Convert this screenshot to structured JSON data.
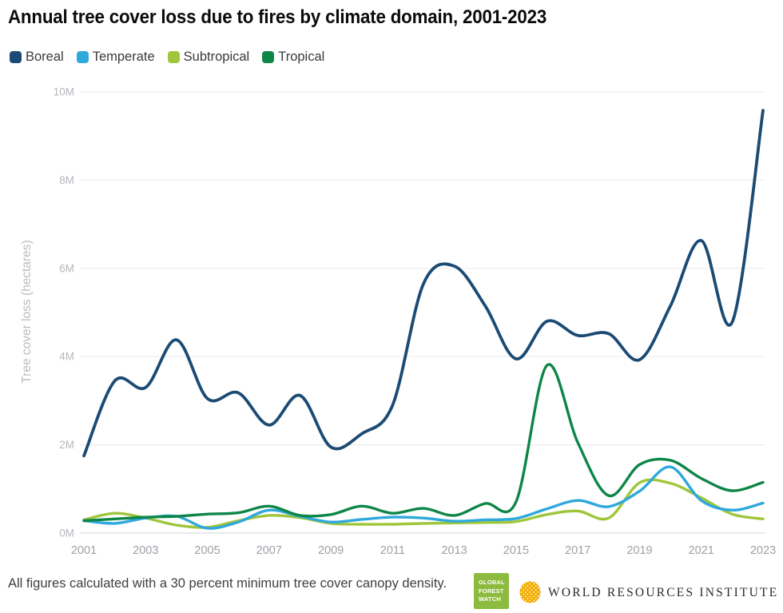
{
  "header": {
    "title": "Annual tree cover loss due to fires by climate domain, 2001-2023"
  },
  "chart_data": {
    "type": "line",
    "title": "Annual tree cover loss due to fires by climate domain, 2001-2023",
    "xlabel": "",
    "ylabel": "Tree cover loss (hectares)",
    "unit": "million hectares",
    "grid": true,
    "legend_position": "top",
    "ylim_mha": [
      0,
      10
    ],
    "x_years": [
      2001,
      2002,
      2003,
      2004,
      2005,
      2006,
      2007,
      2008,
      2009,
      2010,
      2011,
      2012,
      2013,
      2014,
      2015,
      2016,
      2017,
      2018,
      2019,
      2020,
      2021,
      2022,
      2023
    ],
    "xtick_labels": [
      "2001",
      "2003",
      "2005",
      "2007",
      "2009",
      "2011",
      "2013",
      "2015",
      "2017",
      "2019",
      "2021",
      "2023"
    ],
    "yticks": [
      {
        "value": 0,
        "label": "0M"
      },
      {
        "value": 2,
        "label": "2M"
      },
      {
        "value": 4,
        "label": "4M"
      },
      {
        "value": 6,
        "label": "6M"
      },
      {
        "value": 8,
        "label": "8M"
      },
      {
        "value": 10,
        "label": "10M"
      }
    ],
    "series": [
      {
        "name": "Boreal",
        "color": "#1B4B74",
        "values_mha": [
          1.75,
          3.45,
          3.3,
          4.38,
          3.05,
          3.18,
          2.45,
          3.12,
          1.95,
          2.25,
          2.9,
          5.65,
          6.05,
          5.15,
          3.95,
          4.8,
          4.48,
          4.52,
          3.93,
          5.15,
          6.63,
          4.78,
          9.58
        ]
      },
      {
        "name": "Temperate",
        "color": "#2FA8DC",
        "values_mha": [
          0.28,
          0.22,
          0.34,
          0.38,
          0.11,
          0.25,
          0.52,
          0.38,
          0.25,
          0.31,
          0.36,
          0.34,
          0.27,
          0.3,
          0.33,
          0.55,
          0.74,
          0.6,
          0.95,
          1.5,
          0.74,
          0.52,
          0.68
        ]
      },
      {
        "name": "Subtropical",
        "color": "#9FC63B",
        "values_mha": [
          0.3,
          0.45,
          0.34,
          0.18,
          0.13,
          0.28,
          0.4,
          0.35,
          0.22,
          0.2,
          0.2,
          0.22,
          0.23,
          0.24,
          0.26,
          0.42,
          0.5,
          0.34,
          1.14,
          1.13,
          0.8,
          0.43,
          0.32
        ]
      },
      {
        "name": "Tropical",
        "color": "#0E8648",
        "values_mha": [
          0.28,
          0.32,
          0.36,
          0.38,
          0.43,
          0.46,
          0.61,
          0.4,
          0.42,
          0.61,
          0.45,
          0.56,
          0.4,
          0.67,
          0.71,
          3.8,
          2.05,
          0.85,
          1.55,
          1.65,
          1.24,
          0.96,
          1.15
        ]
      }
    ]
  },
  "footer": {
    "note": "All figures calculated with a 30 percent minimum tree cover canopy density.",
    "gfw_logo": {
      "lines": [
        "GLOBAL",
        "FOREST",
        "WATCH"
      ],
      "color": "#8CBB3F"
    },
    "wri": {
      "name": "WORLD RESOURCES INSTITUTE",
      "icon_color": "#F0AB00"
    }
  }
}
